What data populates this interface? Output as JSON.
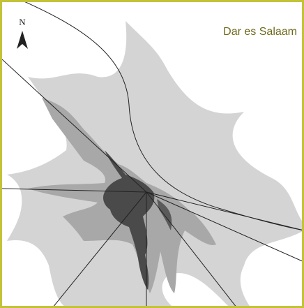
{
  "compass": {
    "label": "N"
  },
  "title": "Dar es Salaam"
}
